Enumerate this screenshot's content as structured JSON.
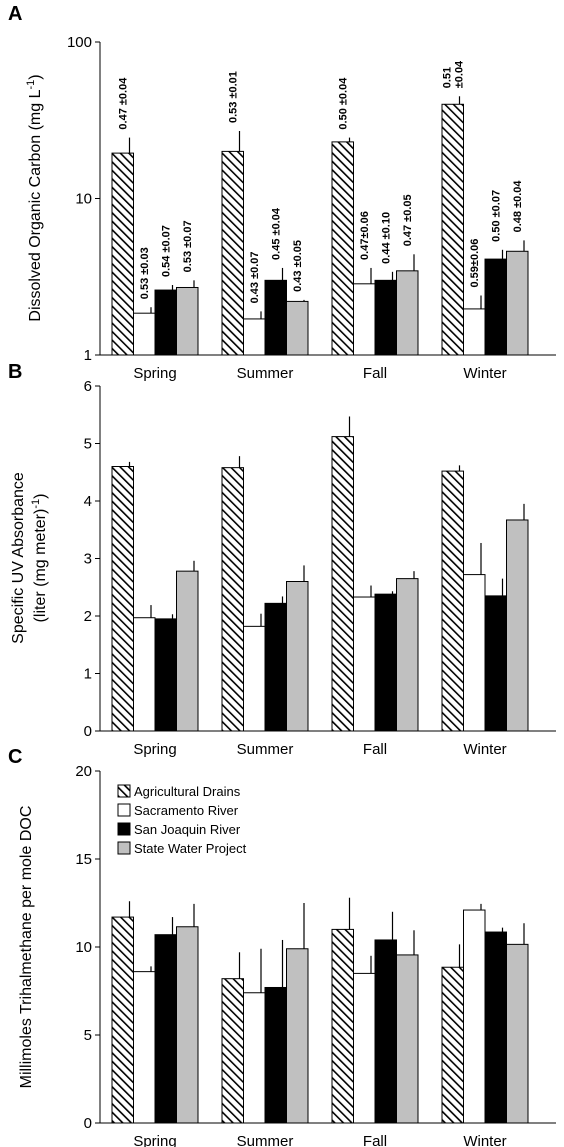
{
  "chart_data": [
    {
      "type": "bar",
      "panel_label": "A",
      "ylabel": [
        [
          "Dissolved Organic Carbon (mg L",
          "-1",
          ")"
        ]
      ],
      "categories": [
        "Spring",
        "Summer",
        "Fall",
        "Winter"
      ],
      "log_scale": true,
      "ylim": [
        1,
        100
      ],
      "yticks": [
        1,
        10,
        100
      ],
      "series": [
        {
          "color": "#000000",
          "pattern": "hatch",
          "values": [
            19.5,
            20,
            23,
            40
          ],
          "errors": [
            5,
            7,
            1.5,
            5
          ],
          "bar_notes": [
            "0.47 ±0.04",
            "0.53 ±0.01",
            "0.50 ±0.04",
            [
              "0.51",
              "±0.04"
            ]
          ]
        },
        {
          "color": "#ffffff",
          "values": [
            1.85,
            1.7,
            2.85,
            1.97
          ],
          "errors": [
            0.17,
            0.2,
            0.75,
            0.43
          ],
          "bar_notes": [
            "0.53 ±0.03",
            "0.43 ±0.07",
            "0.47±0.06",
            "0.59±0.06"
          ]
        },
        {
          "color": "#000000",
          "values": [
            2.6,
            3.0,
            3.0,
            4.1
          ],
          "errors": [
            0.2,
            0.6,
            0.4,
            0.6
          ],
          "bar_notes": [
            "0.54 ±0.07",
            "0.45 ±0.04",
            "0.44 ±0.10",
            "0.50 ±0.07"
          ]
        },
        {
          "color": "#c0c0c0",
          "values": [
            2.7,
            2.2,
            3.45,
            4.6
          ],
          "errors": [
            0.3,
            0.05,
            0.95,
            0.8
          ],
          "bar_notes": [
            "0.53 ±0.07",
            "0.43 ±0.05",
            "0.47 ±0.05",
            "0.48 ±0.04"
          ]
        }
      ]
    },
    {
      "type": "bar",
      "panel_label": "B",
      "ylabel": [
        [
          "Specific UV Absorbance"
        ],
        [
          "(liter (mg meter)",
          "-1",
          ")"
        ]
      ],
      "categories": [
        "Spring",
        "Summer",
        "Fall",
        "Winter"
      ],
      "log_scale": false,
      "ylim": [
        0,
        6
      ],
      "yticks": [
        0,
        1,
        2,
        3,
        4,
        5,
        6
      ],
      "series": [
        {
          "color": "#000000",
          "pattern": "hatch",
          "values": [
            4.6,
            4.58,
            5.12,
            4.52
          ],
          "errors": [
            0.08,
            0.2,
            0.35,
            0.1
          ]
        },
        {
          "color": "#ffffff",
          "values": [
            1.97,
            1.82,
            2.33,
            2.72
          ],
          "errors": [
            0.22,
            0.22,
            0.2,
            0.55
          ]
        },
        {
          "color": "#000000",
          "values": [
            1.95,
            2.22,
            2.38,
            2.35
          ],
          "errors": [
            0.08,
            0.12,
            0.05,
            0.3
          ]
        },
        {
          "color": "#c0c0c0",
          "values": [
            2.78,
            2.6,
            2.65,
            3.67
          ],
          "errors": [
            0.18,
            0.28,
            0.13,
            0.28
          ]
        }
      ]
    },
    {
      "type": "bar",
      "panel_label": "C",
      "ylabel": [
        [
          "Millimoles Trihalmethane per mole DOC"
        ]
      ],
      "categories": [
        "Spring",
        "Summer",
        "Fall",
        "Winter"
      ],
      "log_scale": false,
      "ylim": [
        0,
        20
      ],
      "yticks": [
        0,
        5,
        10,
        15,
        20
      ],
      "legend": "upper left",
      "series": [
        {
          "name": "Agricultural Drains",
          "color": "#000000",
          "pattern": "hatch",
          "values": [
            11.7,
            8.2,
            11.0,
            8.85
          ],
          "errors": [
            0.9,
            1.5,
            1.8,
            1.3
          ]
        },
        {
          "name": "Sacramento River",
          "color": "#ffffff",
          "values": [
            8.6,
            7.4,
            8.5,
            12.1
          ],
          "errors": [
            0.3,
            2.5,
            1.0,
            0.35
          ]
        },
        {
          "name": "San Joaquin River",
          "color": "#000000",
          "values": [
            10.7,
            7.7,
            10.4,
            10.85
          ],
          "errors": [
            1.0,
            2.7,
            1.6,
            0.25
          ]
        },
        {
          "name": "State Water Project",
          "color": "#c0c0c0",
          "values": [
            11.15,
            9.9,
            9.55,
            10.15
          ],
          "errors": [
            1.3,
            2.6,
            1.4,
            1.2
          ]
        }
      ]
    }
  ]
}
